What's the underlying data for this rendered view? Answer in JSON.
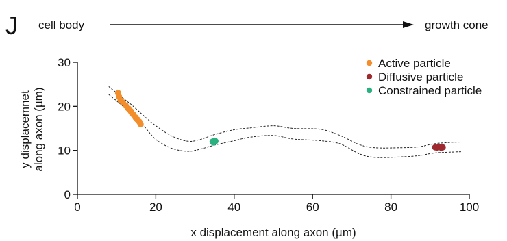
{
  "panel_label": "J",
  "direction": {
    "start_label": "cell body",
    "end_label": "growth cone"
  },
  "chart_data": {
    "type": "scatter",
    "title": "",
    "xlabel": "x displacement along axon (µm)",
    "ylabel_lines": [
      "y displacemnet",
      "along axon (µm)"
    ],
    "xlim": [
      0,
      100
    ],
    "ylim": [
      0,
      30
    ],
    "xticks": [
      0,
      20,
      40,
      60,
      80,
      100
    ],
    "yticks": [
      0,
      10,
      20,
      30
    ],
    "grid": false,
    "legend_position": "top-right",
    "axon_boundaries": [
      {
        "x": [
          8,
          11,
          14,
          17,
          20,
          24,
          28,
          31,
          35,
          40,
          44,
          50,
          55,
          62,
          67,
          72,
          76,
          82,
          87,
          91,
          95,
          98
        ],
        "y": [
          24.5,
          22.3,
          20.2,
          17.8,
          15.6,
          13.3,
          12.1,
          12.4,
          13.6,
          14.7,
          15.1,
          15.6,
          15,
          14.8,
          13.4,
          11.3,
          10.6,
          10.6,
          10.8,
          11.5,
          11.8,
          11.9
        ]
      },
      {
        "x": [
          8,
          11,
          14,
          17,
          20,
          24,
          28,
          31,
          35,
          40,
          44,
          50,
          55,
          62,
          67,
          72,
          76,
          82,
          87,
          91,
          95,
          98
        ],
        "y": [
          22.7,
          20.5,
          18.2,
          15.5,
          12.5,
          10.5,
          9.8,
          10.2,
          11.2,
          12.2,
          13,
          13.4,
          12.6,
          12.2,
          11.5,
          9.2,
          8.4,
          8.5,
          8.8,
          9.4,
          9.6,
          9.7
        ]
      }
    ],
    "series": [
      {
        "name": "Active particle",
        "color": "#f28e2b",
        "points": [
          [
            10.4,
            23.0
          ],
          [
            10.6,
            22.2
          ],
          [
            11.0,
            21.4
          ],
          [
            11.6,
            20.9
          ],
          [
            12.3,
            20.2
          ],
          [
            13.0,
            19.5
          ],
          [
            13.6,
            18.9
          ],
          [
            14.2,
            18.2
          ],
          [
            14.8,
            17.5
          ],
          [
            15.3,
            17.0
          ],
          [
            15.8,
            16.5
          ],
          [
            16.1,
            16.0
          ]
        ]
      },
      {
        "name": "Diffusive particle",
        "color": "#9e2a2f",
        "points": [
          [
            91.3,
            10.7
          ],
          [
            91.8,
            10.6
          ],
          [
            92.3,
            10.8
          ],
          [
            92.8,
            10.6
          ],
          [
            93.2,
            10.7
          ]
        ]
      },
      {
        "name": "Constrained particle",
        "color": "#2bb07f",
        "points": [
          [
            34.5,
            12.0
          ],
          [
            34.9,
            11.9
          ],
          [
            35.2,
            12.1
          ],
          [
            35.0,
            12.2
          ],
          [
            34.7,
            11.8
          ]
        ]
      }
    ]
  }
}
